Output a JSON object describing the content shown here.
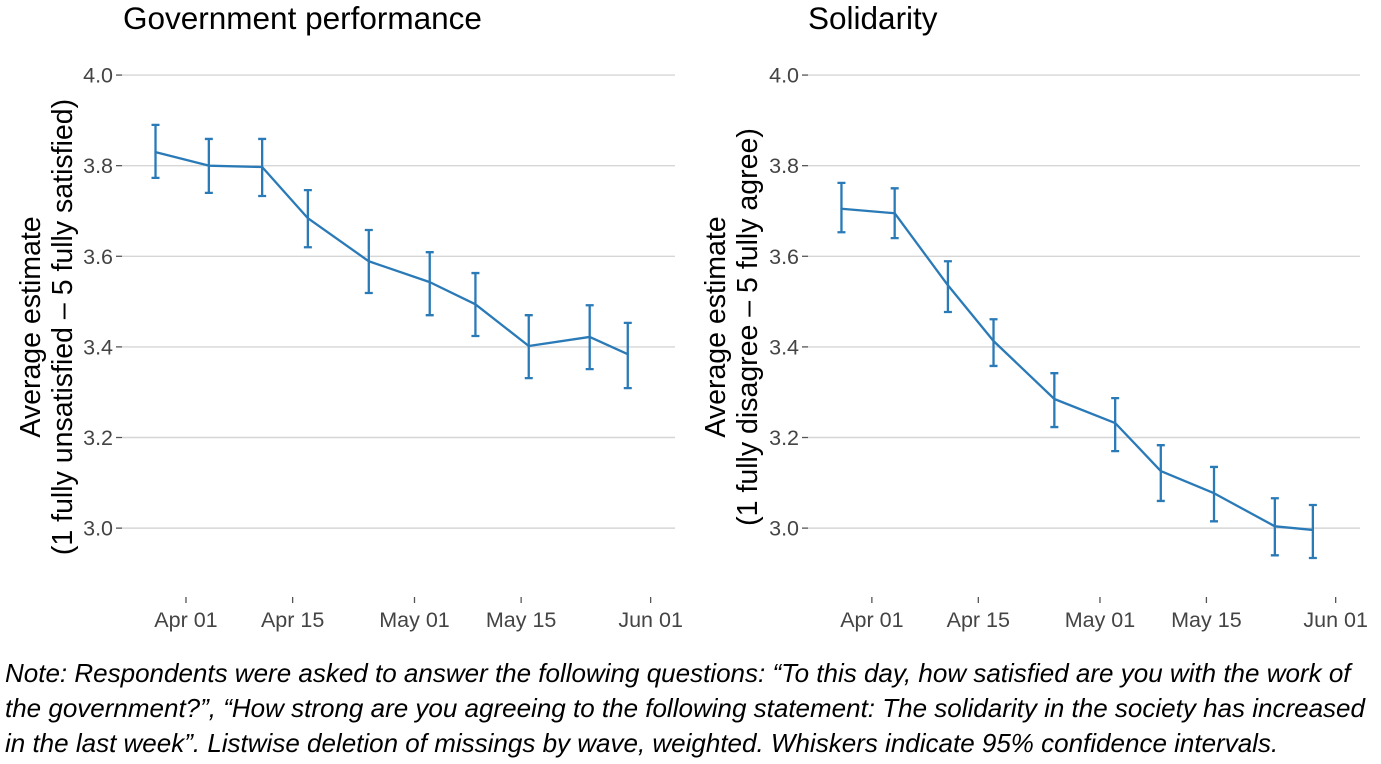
{
  "chart_data": [
    {
      "type": "line",
      "title": "Government performance",
      "xlabel": "",
      "ylabel": [
        "Average estimate",
        "(1 fully unsatisfied – 5 fully satisfied)"
      ],
      "x_days_from_apr01": [
        -4,
        3,
        10,
        16,
        24,
        32,
        38,
        45,
        53,
        58
      ],
      "values": [
        3.83,
        3.8,
        3.797,
        3.684,
        3.589,
        3.543,
        3.494,
        3.402,
        3.422,
        3.384
      ],
      "ci_lower": [
        3.773,
        3.74,
        3.733,
        3.62,
        3.519,
        3.47,
        3.424,
        3.331,
        3.351,
        3.309
      ],
      "ci_upper": [
        3.89,
        3.859,
        3.859,
        3.746,
        3.658,
        3.609,
        3.563,
        3.47,
        3.492,
        3.453
      ],
      "xlim": [
        -8.4,
        64.2
      ],
      "ylim": [
        2.859,
        4.02
      ],
      "yticks": [
        3.0,
        3.2,
        3.4,
        3.6,
        3.8,
        4.0
      ],
      "ytick_labels": [
        "3.0",
        "3.2",
        "3.4",
        "3.6",
        "3.8",
        "4.0"
      ],
      "xticks": [
        0,
        14,
        30,
        44,
        61
      ],
      "xtick_labels": [
        "Apr 01",
        "Apr 15",
        "May 01",
        "May 15",
        "Jun 01"
      ],
      "grid": true,
      "color": "#2a7ab8"
    },
    {
      "type": "line",
      "title": "Solidarity",
      "xlabel": "",
      "ylabel": [
        "Average estimate",
        "(1 fully disagree – 5 fully agree)"
      ],
      "x_days_from_apr01": [
        -4,
        3,
        10,
        16,
        24,
        32,
        38,
        45,
        53,
        58
      ],
      "values": [
        3.705,
        3.695,
        3.536,
        3.413,
        3.285,
        3.232,
        3.126,
        3.077,
        3.004,
        2.996
      ],
      "ci_lower": [
        3.653,
        3.64,
        3.477,
        3.358,
        3.223,
        3.17,
        3.06,
        3.015,
        2.94,
        2.934
      ],
      "ci_upper": [
        3.762,
        3.75,
        3.589,
        3.461,
        3.342,
        3.287,
        3.183,
        3.135,
        3.066,
        3.051
      ],
      "xlim": [
        -8.4,
        64.2
      ],
      "ylim": [
        2.859,
        4.02
      ],
      "yticks": [
        3.0,
        3.2,
        3.4,
        3.6,
        3.8,
        4.0
      ],
      "ytick_labels": [
        "3.0",
        "3.2",
        "3.4",
        "3.6",
        "3.8",
        "4.0"
      ],
      "xticks": [
        0,
        14,
        30,
        44,
        61
      ],
      "xtick_labels": [
        "Apr 01",
        "Apr 15",
        "May 01",
        "May 15",
        "Jun 01"
      ],
      "grid": true,
      "color": "#2a7ab8"
    }
  ],
  "note": {
    "lines": [
      "Note: Respondents were asked to answer the following questions: “To this day, how satisfied are you with the work of",
      "the government?”, “How strong are you agreeing to the following statement: The solidarity in the society has increased",
      "in the last week”. Listwise deletion of missings by wave, weighted. Whiskers indicate 95% confidence intervals."
    ]
  }
}
